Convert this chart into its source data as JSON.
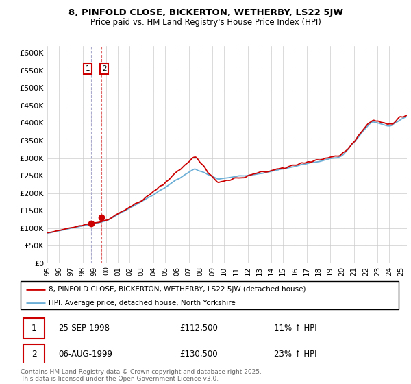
{
  "title": "8, PINFOLD CLOSE, BICKERTON, WETHERBY, LS22 5JW",
  "subtitle": "Price paid vs. HM Land Registry's House Price Index (HPI)",
  "legend_line1": "8, PINFOLD CLOSE, BICKERTON, WETHERBY, LS22 5JW (detached house)",
  "legend_line2": "HPI: Average price, detached house, North Yorkshire",
  "transaction1_date": "25-SEP-1998",
  "transaction1_price": "£112,500",
  "transaction1_hpi": "11% ↑ HPI",
  "transaction2_date": "06-AUG-1999",
  "transaction2_price": "£130,500",
  "transaction2_hpi": "23% ↑ HPI",
  "footer": "Contains HM Land Registry data © Crown copyright and database right 2025.\nThis data is licensed under the Open Government Licence v3.0.",
  "hpi_color": "#6baed6",
  "price_color": "#cc0000",
  "ylim_min": 0,
  "ylim_max": 620000,
  "yticks": [
    0,
    50000,
    100000,
    150000,
    200000,
    250000,
    300000,
    350000,
    400000,
    450000,
    500000,
    550000,
    600000
  ],
  "start_year": 1995.0,
  "end_year": 2025.5,
  "t1_time": 1998.7,
  "t1_price": 112500,
  "t2_time": 1999.58,
  "t2_price": 130500
}
